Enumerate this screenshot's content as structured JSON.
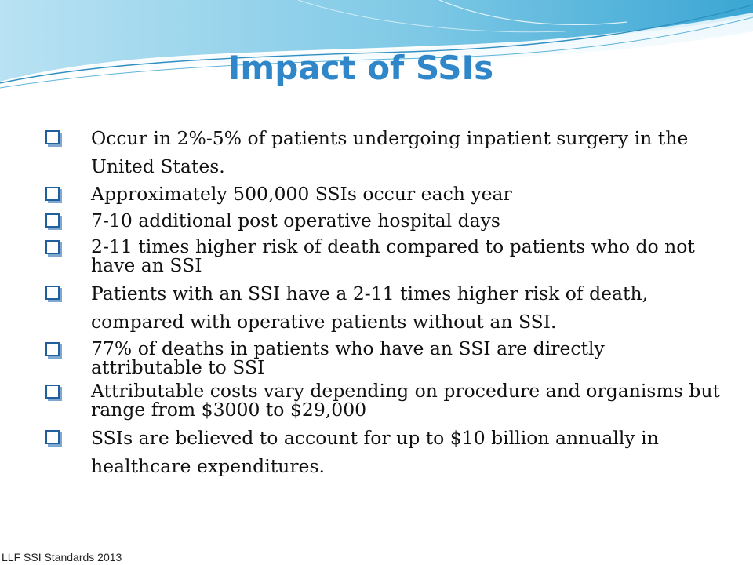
{
  "slide": {
    "title": "Impact of SSIs",
    "footer": "LLF SSI Standards 2013",
    "accent_color": "#2f86c9",
    "bullet_icon": "checkbox-square-icon",
    "bullets": [
      "Occur in 2%-5% of patients undergoing inpatient surgery in the United States.",
      "Approximately 500,000 SSIs occur each year",
      "7-10 additional post operative hospital days",
      "2-11 times higher risk of death compared to patients who do not have an SSI",
      "Patients with an SSI have a 2-11 times higher risk of death, compared with operative patients without an SSI.",
      "77% of deaths in patients who have an SSI are directly attributable to SSI",
      "Attributable costs vary depending on procedure and organisms but range from $3000 to $29,000",
      "SSIs are believed to account for up to $10 billion annually in healthcare expenditures."
    ]
  }
}
